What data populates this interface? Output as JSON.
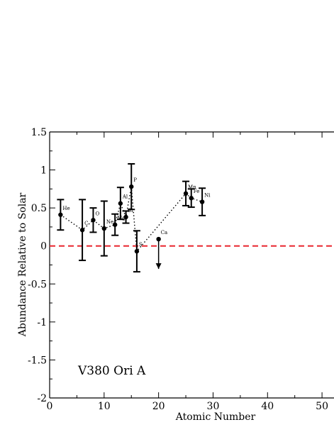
{
  "chart_data": {
    "type": "scatter",
    "annotation": "V380 Ori A",
    "xlabel": "Atomic Number",
    "ylabel": "Abundance Relative to Solar",
    "xlim": [
      0,
      52.2
    ],
    "ylim": [
      -2,
      1.5
    ],
    "x_ticks": [
      "0",
      "10",
      "20",
      "30",
      "40",
      "50"
    ],
    "y_ticks": [
      "-2",
      "-1.5",
      "-1",
      "-0.5",
      "0",
      "0.5",
      "1",
      "1.5"
    ],
    "reference_line": {
      "y": 0,
      "color": "#e8262e",
      "style": "dashed"
    },
    "points": [
      {
        "label": "He",
        "x": 2,
        "y": 0.41,
        "err_low": 0.2,
        "err_high": 0.2
      },
      {
        "label": "C",
        "x": 6,
        "y": 0.21,
        "err_low": 0.4,
        "err_high": 0.4
      },
      {
        "label": "O",
        "x": 8,
        "y": 0.34,
        "err_low": 0.16,
        "err_high": 0.16
      },
      {
        "label": "Ne",
        "x": 10,
        "y": 0.23,
        "err_low": 0.36,
        "err_high": 0.36
      },
      {
        "label": "Mg",
        "x": 12,
        "y": 0.28,
        "err_low": 0.14,
        "err_high": 0.14
      },
      {
        "label": "Al",
        "x": 13,
        "y": 0.56,
        "err_low": 0.21,
        "err_high": 0.21
      },
      {
        "label": "Si",
        "x": 14,
        "y": 0.38,
        "err_low": 0.08,
        "err_high": 0.08
      },
      {
        "label": "P",
        "x": 15,
        "y": 0.78,
        "err_low": 0.3,
        "err_high": 0.3
      },
      {
        "label": "S",
        "x": 16,
        "y": -0.07,
        "err_low": 0.27,
        "err_high": 0.27
      },
      {
        "label": "Ca",
        "x": 20,
        "y": 0.09,
        "upper_limit": true
      },
      {
        "label": "Mn",
        "x": 25,
        "y": 0.69,
        "err_low": 0.16,
        "err_high": 0.16
      },
      {
        "label": "Fe",
        "x": 26,
        "y": 0.63,
        "err_low": 0.12,
        "err_high": 0.12
      },
      {
        "label": "Ni",
        "x": 28,
        "y": 0.58,
        "err_low": 0.18,
        "err_high": 0.18
      }
    ],
    "connected_order": [
      "He",
      "C",
      "O",
      "Ne",
      "Mg",
      "Al",
      "Si",
      "P",
      "S",
      "Mn",
      "Fe",
      "Ni"
    ],
    "grid": false,
    "legend": "none"
  }
}
